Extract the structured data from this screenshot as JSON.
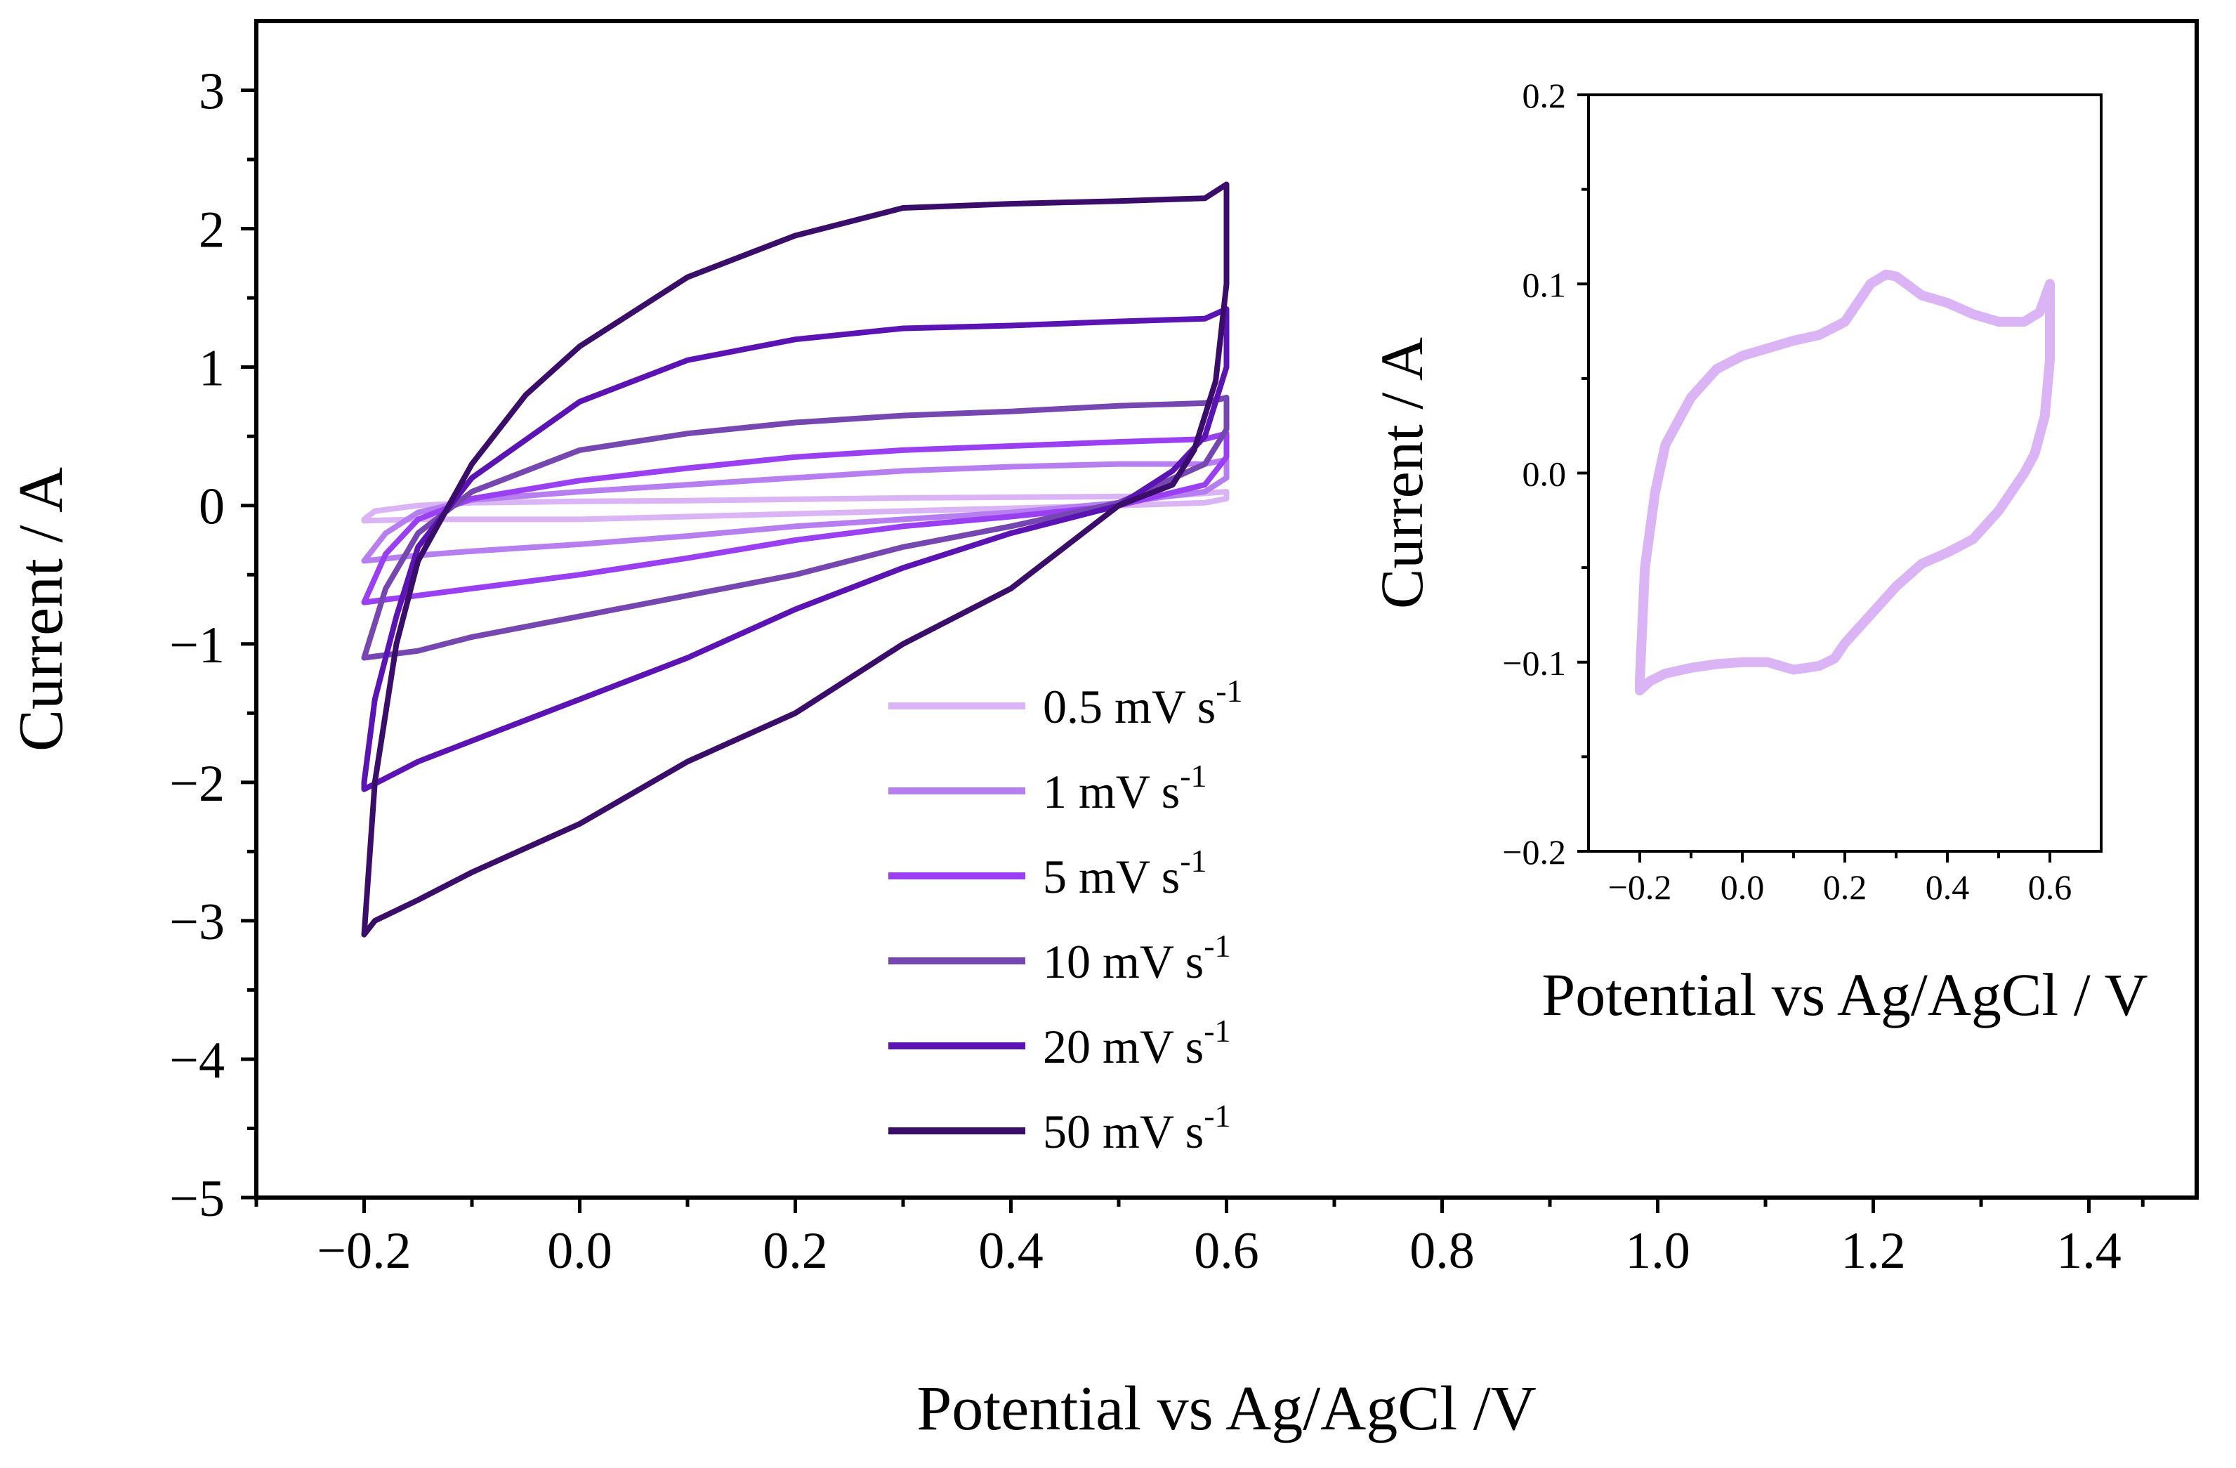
{
  "chart_data": [
    {
      "type": "line",
      "xlabel": "Potential vs Ag/AgCl /V",
      "ylabel": "Current / A",
      "xlim": [
        -0.3,
        1.5
      ],
      "ylim": [
        -5,
        3.5
      ],
      "xticks": [
        "−0.2",
        "0.0",
        "0.2",
        "0.4",
        "0.6",
        "0.8",
        "1.0",
        "1.2",
        "1.4"
      ],
      "yticks": [
        "−5",
        "−4",
        "−3",
        "−2",
        "−1",
        "0",
        "1",
        "2",
        "3"
      ],
      "grid": false,
      "legend_position": "center",
      "series": [
        {
          "name": "0.5 mV s-1",
          "color": "#dbb4f5",
          "x": [
            -0.2,
            -0.19,
            -0.15,
            -0.1,
            0.0,
            0.1,
            0.2,
            0.3,
            0.4,
            0.5,
            0.55,
            0.6,
            0.6,
            0.58,
            0.5,
            0.4,
            0.3,
            0.2,
            0.1,
            0.0,
            -0.1,
            -0.15,
            -0.2,
            -0.2
          ],
          "y": [
            -0.1,
            -0.04,
            0.0,
            0.02,
            0.03,
            0.035,
            0.045,
            0.055,
            0.06,
            0.065,
            0.07,
            0.1,
            0.05,
            0.02,
            0.0,
            -0.02,
            -0.04,
            -0.06,
            -0.08,
            -0.1,
            -0.1,
            -0.1,
            -0.11,
            -0.1
          ]
        },
        {
          "name": "1 mV s-1",
          "color": "#b77ef0",
          "x": [
            -0.2,
            -0.18,
            -0.15,
            -0.1,
            0.0,
            0.1,
            0.2,
            0.3,
            0.4,
            0.5,
            0.58,
            0.6,
            0.6,
            0.58,
            0.5,
            0.4,
            0.3,
            0.2,
            0.1,
            0.0,
            -0.1,
            -0.15,
            -0.2,
            -0.2
          ],
          "y": [
            -0.4,
            -0.2,
            -0.05,
            0.04,
            0.1,
            0.15,
            0.2,
            0.25,
            0.28,
            0.3,
            0.3,
            0.33,
            0.2,
            0.1,
            0.02,
            -0.05,
            -0.1,
            -0.15,
            -0.22,
            -0.28,
            -0.33,
            -0.36,
            -0.4,
            -0.4
          ]
        },
        {
          "name": "5 mV s-1",
          "color": "#9a3ff2",
          "x": [
            -0.2,
            -0.18,
            -0.15,
            -0.1,
            0.0,
            0.1,
            0.2,
            0.3,
            0.4,
            0.5,
            0.58,
            0.6,
            0.6,
            0.58,
            0.5,
            0.4,
            0.3,
            0.2,
            0.1,
            0.0,
            -0.1,
            -0.15,
            -0.2,
            -0.2
          ],
          "y": [
            -0.7,
            -0.35,
            -0.1,
            0.05,
            0.18,
            0.27,
            0.35,
            0.4,
            0.43,
            0.46,
            0.48,
            0.52,
            0.35,
            0.15,
            0.0,
            -0.08,
            -0.15,
            -0.25,
            -0.38,
            -0.5,
            -0.6,
            -0.65,
            -0.7,
            -0.7
          ]
        },
        {
          "name": "10 mV s-1",
          "color": "#7647b0",
          "x": [
            -0.2,
            -0.18,
            -0.15,
            -0.1,
            0.0,
            0.1,
            0.2,
            0.3,
            0.4,
            0.5,
            0.58,
            0.6,
            0.6,
            0.58,
            0.5,
            0.4,
            0.3,
            0.2,
            0.1,
            0.0,
            -0.1,
            -0.15,
            -0.2,
            -0.2
          ],
          "y": [
            -1.1,
            -0.6,
            -0.2,
            0.1,
            0.4,
            0.52,
            0.6,
            0.65,
            0.68,
            0.72,
            0.74,
            0.78,
            0.55,
            0.3,
            0.02,
            -0.15,
            -0.3,
            -0.5,
            -0.65,
            -0.8,
            -0.95,
            -1.05,
            -1.1,
            -1.1
          ]
        },
        {
          "name": "20 mV s-1",
          "color": "#5b14b3",
          "x": [
            -0.2,
            -0.19,
            -0.17,
            -0.15,
            -0.1,
            0.0,
            0.1,
            0.2,
            0.3,
            0.4,
            0.5,
            0.58,
            0.6,
            0.6,
            0.58,
            0.55,
            0.5,
            0.4,
            0.3,
            0.2,
            0.1,
            0.0,
            -0.1,
            -0.15,
            -0.18,
            -0.2,
            -0.2
          ],
          "y": [
            -2.0,
            -1.4,
            -0.8,
            -0.3,
            0.2,
            0.75,
            1.05,
            1.2,
            1.28,
            1.3,
            1.33,
            1.35,
            1.42,
            1.0,
            0.5,
            0.25,
            0.0,
            -0.2,
            -0.45,
            -0.75,
            -1.1,
            -1.4,
            -1.7,
            -1.85,
            -1.97,
            -2.05,
            -2.0
          ]
        },
        {
          "name": "50 mV s-1",
          "color": "#3b0d6b",
          "x": [
            -0.2,
            -0.19,
            -0.17,
            -0.15,
            -0.1,
            -0.05,
            0.0,
            0.1,
            0.2,
            0.3,
            0.4,
            0.5,
            0.58,
            0.6,
            0.6,
            0.59,
            0.57,
            0.55,
            0.5,
            0.45,
            0.4,
            0.3,
            0.2,
            0.1,
            0.0,
            -0.1,
            -0.15,
            -0.19,
            -0.2
          ],
          "y": [
            -3.1,
            -2.0,
            -1.0,
            -0.4,
            0.3,
            0.8,
            1.15,
            1.65,
            1.95,
            2.15,
            2.18,
            2.2,
            2.22,
            2.32,
            1.6,
            0.9,
            0.4,
            0.15,
            0.0,
            -0.3,
            -0.6,
            -1.0,
            -1.5,
            -1.85,
            -2.3,
            -2.65,
            -2.85,
            -3.0,
            -3.1
          ]
        }
      ]
    },
    {
      "type": "line",
      "xlabel": "Potential vs Ag/AgCl / V",
      "ylabel": "Current / A",
      "xlim": [
        -0.3,
        0.7
      ],
      "ylim": [
        -0.2,
        0.2
      ],
      "xticks": [
        "−0.2",
        "0.0",
        "0.2",
        "0.4",
        "0.6"
      ],
      "yticks": [
        "−0.2",
        "−0.1",
        "0.0",
        "0.1",
        "0.2"
      ],
      "grid": false,
      "series": [
        {
          "color": "#dbb4f5",
          "x": [
            -0.2,
            -0.19,
            -0.17,
            -0.15,
            -0.1,
            -0.05,
            0.0,
            0.05,
            0.1,
            0.15,
            0.2,
            0.25,
            0.28,
            0.3,
            0.32,
            0.35,
            0.4,
            0.45,
            0.5,
            0.55,
            0.58,
            0.6,
            0.6,
            0.59,
            0.57,
            0.55,
            0.5,
            0.45,
            0.4,
            0.35,
            0.3,
            0.25,
            0.2,
            0.18,
            0.15,
            0.1,
            0.05,
            0.0,
            -0.05,
            -0.1,
            -0.15,
            -0.18,
            -0.2,
            -0.2
          ],
          "y": [
            -0.11,
            -0.05,
            -0.01,
            0.015,
            0.04,
            0.055,
            0.062,
            0.066,
            0.07,
            0.073,
            0.08,
            0.1,
            0.105,
            0.104,
            0.1,
            0.094,
            0.09,
            0.084,
            0.08,
            0.08,
            0.085,
            0.1,
            0.06,
            0.03,
            0.01,
            0.0,
            -0.02,
            -0.035,
            -0.042,
            -0.048,
            -0.06,
            -0.075,
            -0.09,
            -0.098,
            -0.102,
            -0.104,
            -0.1,
            -0.1,
            -0.101,
            -0.103,
            -0.106,
            -0.11,
            -0.115,
            -0.11
          ]
        }
      ]
    }
  ]
}
